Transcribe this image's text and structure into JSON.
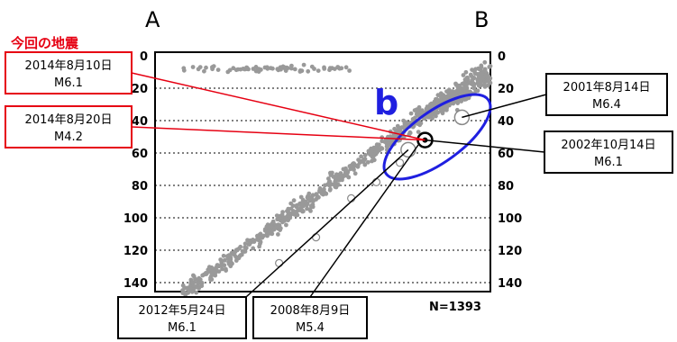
{
  "chart_data": {
    "type": "scatter",
    "title": "",
    "xlabel": "",
    "ylabel": "",
    "section_labels": {
      "left": "A",
      "right": "B"
    },
    "current_quake_heading": "今回の地震",
    "cluster_label": "b",
    "count_label": "N=1393",
    "depth_axis": {
      "ticks": [
        "0",
        "20",
        "40",
        "60",
        "80",
        "100",
        "120",
        "140"
      ],
      "ylim": [
        0,
        150
      ]
    },
    "x_range": [
      0,
      100
    ],
    "grid": "horizontal-dashed",
    "callouts": [
      {
        "id": "q20140810",
        "date": "2014年8月10日",
        "mag": "M6.1",
        "color": "#e60012",
        "x": 80.5,
        "depth": 52,
        "side": "left"
      },
      {
        "id": "q20140820",
        "date": "2014年8月20日",
        "mag": "M4.2",
        "color": "#e60012",
        "x": 80.5,
        "depth": 52,
        "side": "left"
      },
      {
        "id": "q20010814",
        "date": "2001年8月14日",
        "mag": "M6.4",
        "color": "#000000",
        "x": 91.5,
        "depth": 38,
        "side": "right"
      },
      {
        "id": "q20021014",
        "date": "2002年10月14日",
        "mag": "M6.1",
        "color": "#000000",
        "x": 80.5,
        "depth": 52,
        "side": "right"
      },
      {
        "id": "q20120524",
        "date": "2012年5月24日",
        "mag": "M6.1",
        "color": "#000000",
        "x": 75.5,
        "depth": 58,
        "side": "bottom"
      },
      {
        "id": "q20080809",
        "date": "2008年8月9日",
        "mag": "M5.4",
        "color": "#000000",
        "x": 78.5,
        "depth": 55,
        "side": "bottom"
      }
    ],
    "large_events": [
      {
        "x": 91.5,
        "depth": 38,
        "size": "large"
      },
      {
        "x": 75.5,
        "depth": 58,
        "size": "large"
      },
      {
        "x": 80.5,
        "depth": 52,
        "size": "current"
      },
      {
        "x": 58.5,
        "depth": 88,
        "size": "small-open"
      },
      {
        "x": 66.0,
        "depth": 78,
        "size": "small-open"
      },
      {
        "x": 48.0,
        "depth": 112,
        "size": "small-open"
      },
      {
        "x": 37.0,
        "depth": 128,
        "size": "small-open"
      },
      {
        "x": 73.0,
        "depth": 66,
        "size": "small-open"
      }
    ],
    "point_style": {
      "color": "#999999"
    }
  }
}
